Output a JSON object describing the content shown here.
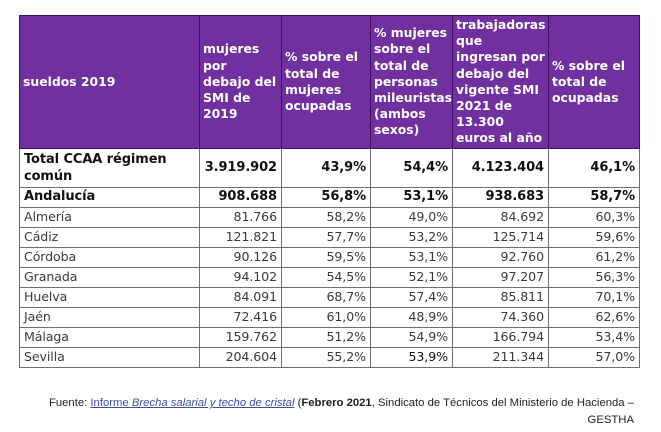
{
  "table": {
    "headers": [
      "sueldos 2019",
      "mujeres por debajo del SMI de 2019",
      "% sobre el total de mujeres ocupadas",
      "% mujeres sobre el total de personas mileuristas (ambos sexos)",
      "trabajadoras que ingresan por debajo del vigente SMI 2021 de 13.300 euros al año",
      "% sobre el total de ocupadas"
    ],
    "header_color": "#7030a0",
    "total": {
      "name": "Total CCAA régimen común",
      "values": [
        "3.919.902",
        "43,9%",
        "54,4%",
        "4.123.404",
        "46,1%"
      ]
    },
    "andalucia": {
      "name": "Andalucía",
      "values": [
        "908.688",
        "56,8%",
        "53,1%",
        "938.683",
        "58,7%"
      ]
    },
    "rows": [
      {
        "name": "Almería",
        "values": [
          "81.766",
          "58,2%",
          "49,0%",
          "84.692",
          "60,3%"
        ]
      },
      {
        "name": "Cádiz",
        "values": [
          "121.821",
          "57,7%",
          "53,2%",
          "125.714",
          "59,6%"
        ]
      },
      {
        "name": "Córdoba",
        "values": [
          "90.126",
          "59,5%",
          "53,1%",
          "92.760",
          "61,2%"
        ]
      },
      {
        "name": "Granada",
        "values": [
          "94.102",
          "54,5%",
          "52,1%",
          "97.207",
          "56,3%"
        ]
      },
      {
        "name": "Huelva",
        "values": [
          "84.091",
          "68,7%",
          "57,4%",
          "85.811",
          "70,1%"
        ]
      },
      {
        "name": "Jaén",
        "values": [
          "72.416",
          "61,0%",
          "48,9%",
          "74.360",
          "62,6%"
        ]
      },
      {
        "name": "Málaga",
        "values": [
          "159.762",
          "51,2%",
          "54,9%",
          "166.794",
          "53,4%"
        ]
      },
      {
        "name": "Sevilla",
        "values": [
          "204.604",
          "55,2%",
          "53,9%",
          "211.344",
          "57,0%"
        ]
      }
    ]
  },
  "source": {
    "prefix": "Fuente: ",
    "link_plain": "Informe ",
    "link_italic": "Brecha salarial y techo de cristal",
    "paren_open": " (",
    "date_bold": "Febrero 2021",
    "rest": ", Sindicato de Técnicos del Ministerio de Hacienda –",
    "line2": "GESTHA"
  }
}
